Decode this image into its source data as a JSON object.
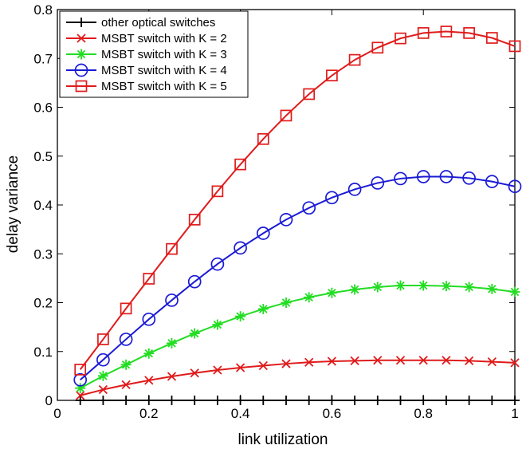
{
  "chart_data": {
    "type": "line",
    "title": "",
    "xlabel": "link utilization",
    "ylabel": "delay variance",
    "xlim": [
      0,
      1
    ],
    "ylim": [
      0,
      0.8
    ],
    "xticks": [
      "0",
      "0.2",
      "0.4",
      "0.6",
      "0.8",
      "1"
    ],
    "yticks": [
      "0",
      "0.1",
      "0.2",
      "0.3",
      "0.4",
      "0.5",
      "0.6",
      "0.7",
      "0.8"
    ],
    "grid": false,
    "legend_position": "top-left",
    "x": [
      0.05,
      0.1,
      0.15,
      0.2,
      0.25,
      0.3,
      0.35,
      0.4,
      0.45,
      0.5,
      0.55,
      0.6,
      0.65,
      0.7,
      0.75,
      0.8,
      0.85,
      0.9,
      0.95,
      1.0
    ],
    "series": [
      {
        "name": "other optical switches",
        "color": "#000000",
        "marker": "plus",
        "values": [
          0,
          0,
          0,
          0,
          0,
          0,
          0,
          0,
          0,
          0,
          0,
          0,
          0,
          0,
          0,
          0,
          0,
          0,
          0,
          0
        ]
      },
      {
        "name": "MSBT switch with K = 2",
        "color": "#e01b1b",
        "marker": "x",
        "values": [
          0.01,
          0.022,
          0.032,
          0.041,
          0.049,
          0.056,
          0.062,
          0.067,
          0.071,
          0.075,
          0.078,
          0.08,
          0.081,
          0.082,
          0.082,
          0.082,
          0.082,
          0.081,
          0.079,
          0.077
        ]
      },
      {
        "name": "MSBT switch with K = 3",
        "color": "#22dd22",
        "marker": "star",
        "values": [
          0.025,
          0.05,
          0.073,
          0.096,
          0.117,
          0.137,
          0.155,
          0.172,
          0.187,
          0.2,
          0.211,
          0.22,
          0.227,
          0.232,
          0.235,
          0.235,
          0.234,
          0.232,
          0.228,
          0.222
        ]
      },
      {
        "name": "MSBT switch with K = 4",
        "color": "#1a1ad6",
        "marker": "circle",
        "values": [
          0.042,
          0.083,
          0.125,
          0.166,
          0.205,
          0.243,
          0.279,
          0.312,
          0.342,
          0.37,
          0.394,
          0.415,
          0.432,
          0.445,
          0.454,
          0.458,
          0.458,
          0.455,
          0.448,
          0.438
        ]
      },
      {
        "name": "MSBT switch with K = 5",
        "color": "#e01b1b",
        "marker": "square",
        "values": [
          0.063,
          0.125,
          0.188,
          0.249,
          0.31,
          0.37,
          0.428,
          0.483,
          0.535,
          0.583,
          0.627,
          0.665,
          0.697,
          0.722,
          0.741,
          0.752,
          0.755,
          0.752,
          0.742,
          0.725
        ]
      }
    ]
  }
}
